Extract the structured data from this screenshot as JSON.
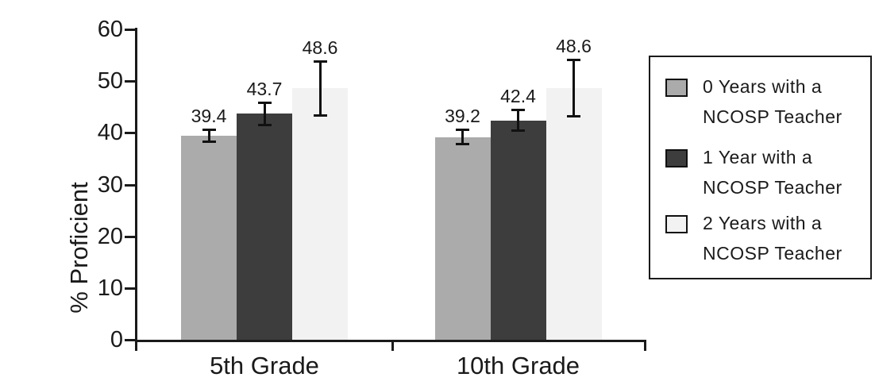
{
  "chart_data": {
    "type": "bar",
    "title": "",
    "categories": [
      "5th Grade",
      "10th Grade"
    ],
    "series": [
      {
        "name": "0 Years with a NCOSP Teacher",
        "color": "#ababab",
        "values": [
          39.4,
          39.2
        ],
        "errors": [
          1.2,
          1.4
        ]
      },
      {
        "name": "1 Year with a NCOSP Teacher",
        "color": "#3d3d3d",
        "values": [
          43.7,
          42.4
        ],
        "errors": [
          2.2,
          2.1
        ]
      },
      {
        "name": "2 Years with a NCOSP Teacher",
        "color": "#f2f2f2",
        "values": [
          48.6,
          48.6
        ],
        "errors": [
          5.3,
          5.5
        ]
      }
    ],
    "xlabel": "",
    "ylabel": "% Proficient",
    "ylim": [
      0,
      60
    ],
    "yticks": [
      0,
      10,
      20,
      30,
      40,
      50,
      60
    ],
    "grid": false,
    "error_bars": true,
    "value_labels": true,
    "legend_position": "right"
  },
  "legend": {
    "items": [
      {
        "line1": "0 Years with a",
        "line2": "NCOSP Teacher",
        "color": "#ababab"
      },
      {
        "line1": "1 Year with a",
        "line2": "NCOSP Teacher",
        "color": "#3d3d3d"
      },
      {
        "line1": "2 Years with a",
        "line2": "NCOSP Teacher",
        "color": "#f2f2f2"
      }
    ]
  },
  "colors": {
    "axis": "#1a1a1a",
    "text": "#1a1a1a",
    "error_bar": "#111111",
    "background": "#ffffff"
  }
}
